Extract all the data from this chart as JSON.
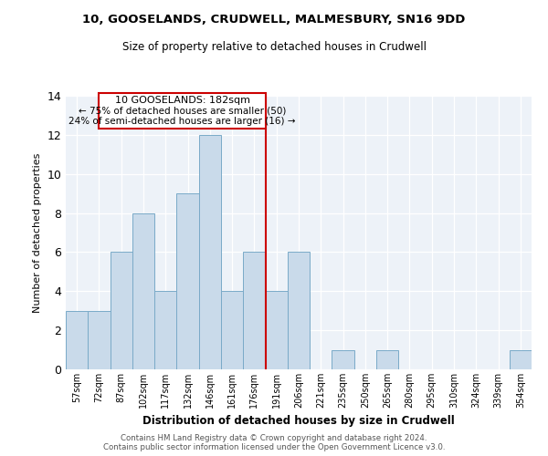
{
  "title_line1": "10, GOOSELANDS, CRUDWELL, MALMESBURY, SN16 9DD",
  "title_line2": "Size of property relative to detached houses in Crudwell",
  "xlabel": "Distribution of detached houses by size in Crudwell",
  "ylabel": "Number of detached properties",
  "bar_color": "#c9daea",
  "bar_edge_color": "#7aaac8",
  "categories": [
    "57sqm",
    "72sqm",
    "87sqm",
    "102sqm",
    "117sqm",
    "132sqm",
    "146sqm",
    "161sqm",
    "176sqm",
    "191sqm",
    "206sqm",
    "221sqm",
    "235sqm",
    "250sqm",
    "265sqm",
    "280sqm",
    "295sqm",
    "310sqm",
    "324sqm",
    "339sqm",
    "354sqm"
  ],
  "values": [
    3,
    3,
    6,
    8,
    4,
    9,
    12,
    4,
    6,
    4,
    6,
    0,
    1,
    0,
    1,
    0,
    0,
    0,
    0,
    0,
    1
  ],
  "property_label": "10 GOOSELANDS: 182sqm",
  "annotation_line2": "← 75% of detached houses are smaller (50)",
  "annotation_line3": "24% of semi-detached houses are larger (16) →",
  "vline_x_index": 8.5,
  "vline_color": "#cc0000",
  "box_color": "#cc0000",
  "ylim": [
    0,
    14
  ],
  "yticks": [
    0,
    2,
    4,
    6,
    8,
    10,
    12,
    14
  ],
  "background_color": "#edf2f8",
  "footer_line1": "Contains HM Land Registry data © Crown copyright and database right 2024.",
  "footer_line2": "Contains public sector information licensed under the Open Government Licence v3.0."
}
